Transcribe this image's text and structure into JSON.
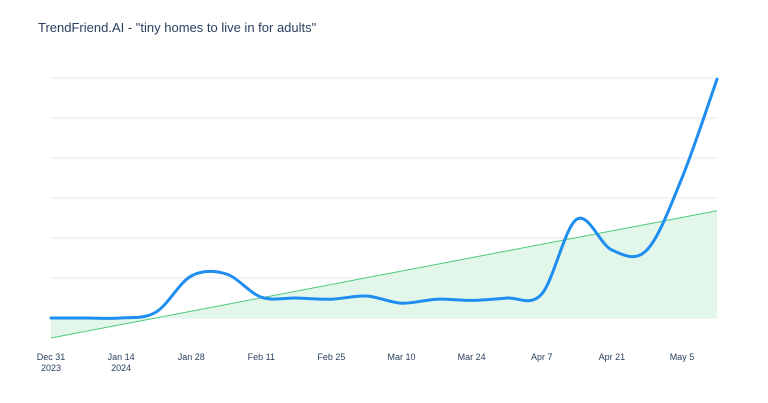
{
  "title": "TrendFriend.AI - \"tiny homes to live in for adults\"",
  "colors": {
    "series": "#1f8ef1",
    "trend": "#4cca7a",
    "trend_fill": "#e2f6ea",
    "grid": "#e6e9ef",
    "text": "#2a3f5f"
  },
  "chart_data": {
    "type": "line",
    "title": "TrendFriend.AI - \"tiny homes to live in for adults\"",
    "xlabel": "",
    "ylabel": "",
    "x_ticks": [
      {
        "date": "2023-12-31",
        "label": [
          "Dec 31",
          "2023"
        ]
      },
      {
        "date": "2024-01-14",
        "label": [
          "Jan 14",
          "2024"
        ]
      },
      {
        "date": "2024-01-28",
        "label": [
          "Jan 28"
        ]
      },
      {
        "date": "2024-02-11",
        "label": [
          "Feb 11"
        ]
      },
      {
        "date": "2024-02-25",
        "label": [
          "Feb 25"
        ]
      },
      {
        "date": "2024-03-10",
        "label": [
          "Mar 10"
        ]
      },
      {
        "date": "2024-03-24",
        "label": [
          "Mar 24"
        ]
      },
      {
        "date": "2024-04-07",
        "label": [
          "Apr 7"
        ]
      },
      {
        "date": "2024-04-21",
        "label": [
          "Apr 21"
        ]
      },
      {
        "date": "2024-05-05",
        "label": [
          "May 5"
        ]
      }
    ],
    "xlim": [
      "2023-12-31",
      "2024-05-12"
    ],
    "ylim": [
      -0.5,
      6.2
    ],
    "grid": true,
    "yticks_visible": false,
    "series": [
      {
        "kind": "line",
        "points": [
          [
            "2023-12-31",
            0.0
          ],
          [
            "2024-01-07",
            0.0
          ],
          [
            "2024-01-14",
            0.0
          ],
          [
            "2024-01-21",
            0.15
          ],
          [
            "2024-01-28",
            1.05
          ],
          [
            "2024-02-04",
            1.1
          ],
          [
            "2024-02-11",
            0.52
          ],
          [
            "2024-02-18",
            0.5
          ],
          [
            "2024-02-25",
            0.47
          ],
          [
            "2024-03-03",
            0.55
          ],
          [
            "2024-03-10",
            0.37
          ],
          [
            "2024-03-17",
            0.47
          ],
          [
            "2024-03-24",
            0.44
          ],
          [
            "2024-03-31",
            0.5
          ],
          [
            "2024-04-07",
            0.6
          ],
          [
            "2024-04-14",
            2.47
          ],
          [
            "2024-04-21",
            1.7
          ],
          [
            "2024-04-28",
            1.7
          ],
          [
            "2024-05-05",
            3.5
          ],
          [
            "2024-05-12",
            5.97
          ]
        ]
      },
      {
        "kind": "trend",
        "points": [
          [
            "2023-12-31",
            -0.5
          ],
          [
            "2024-05-12",
            2.68
          ]
        ]
      }
    ]
  }
}
